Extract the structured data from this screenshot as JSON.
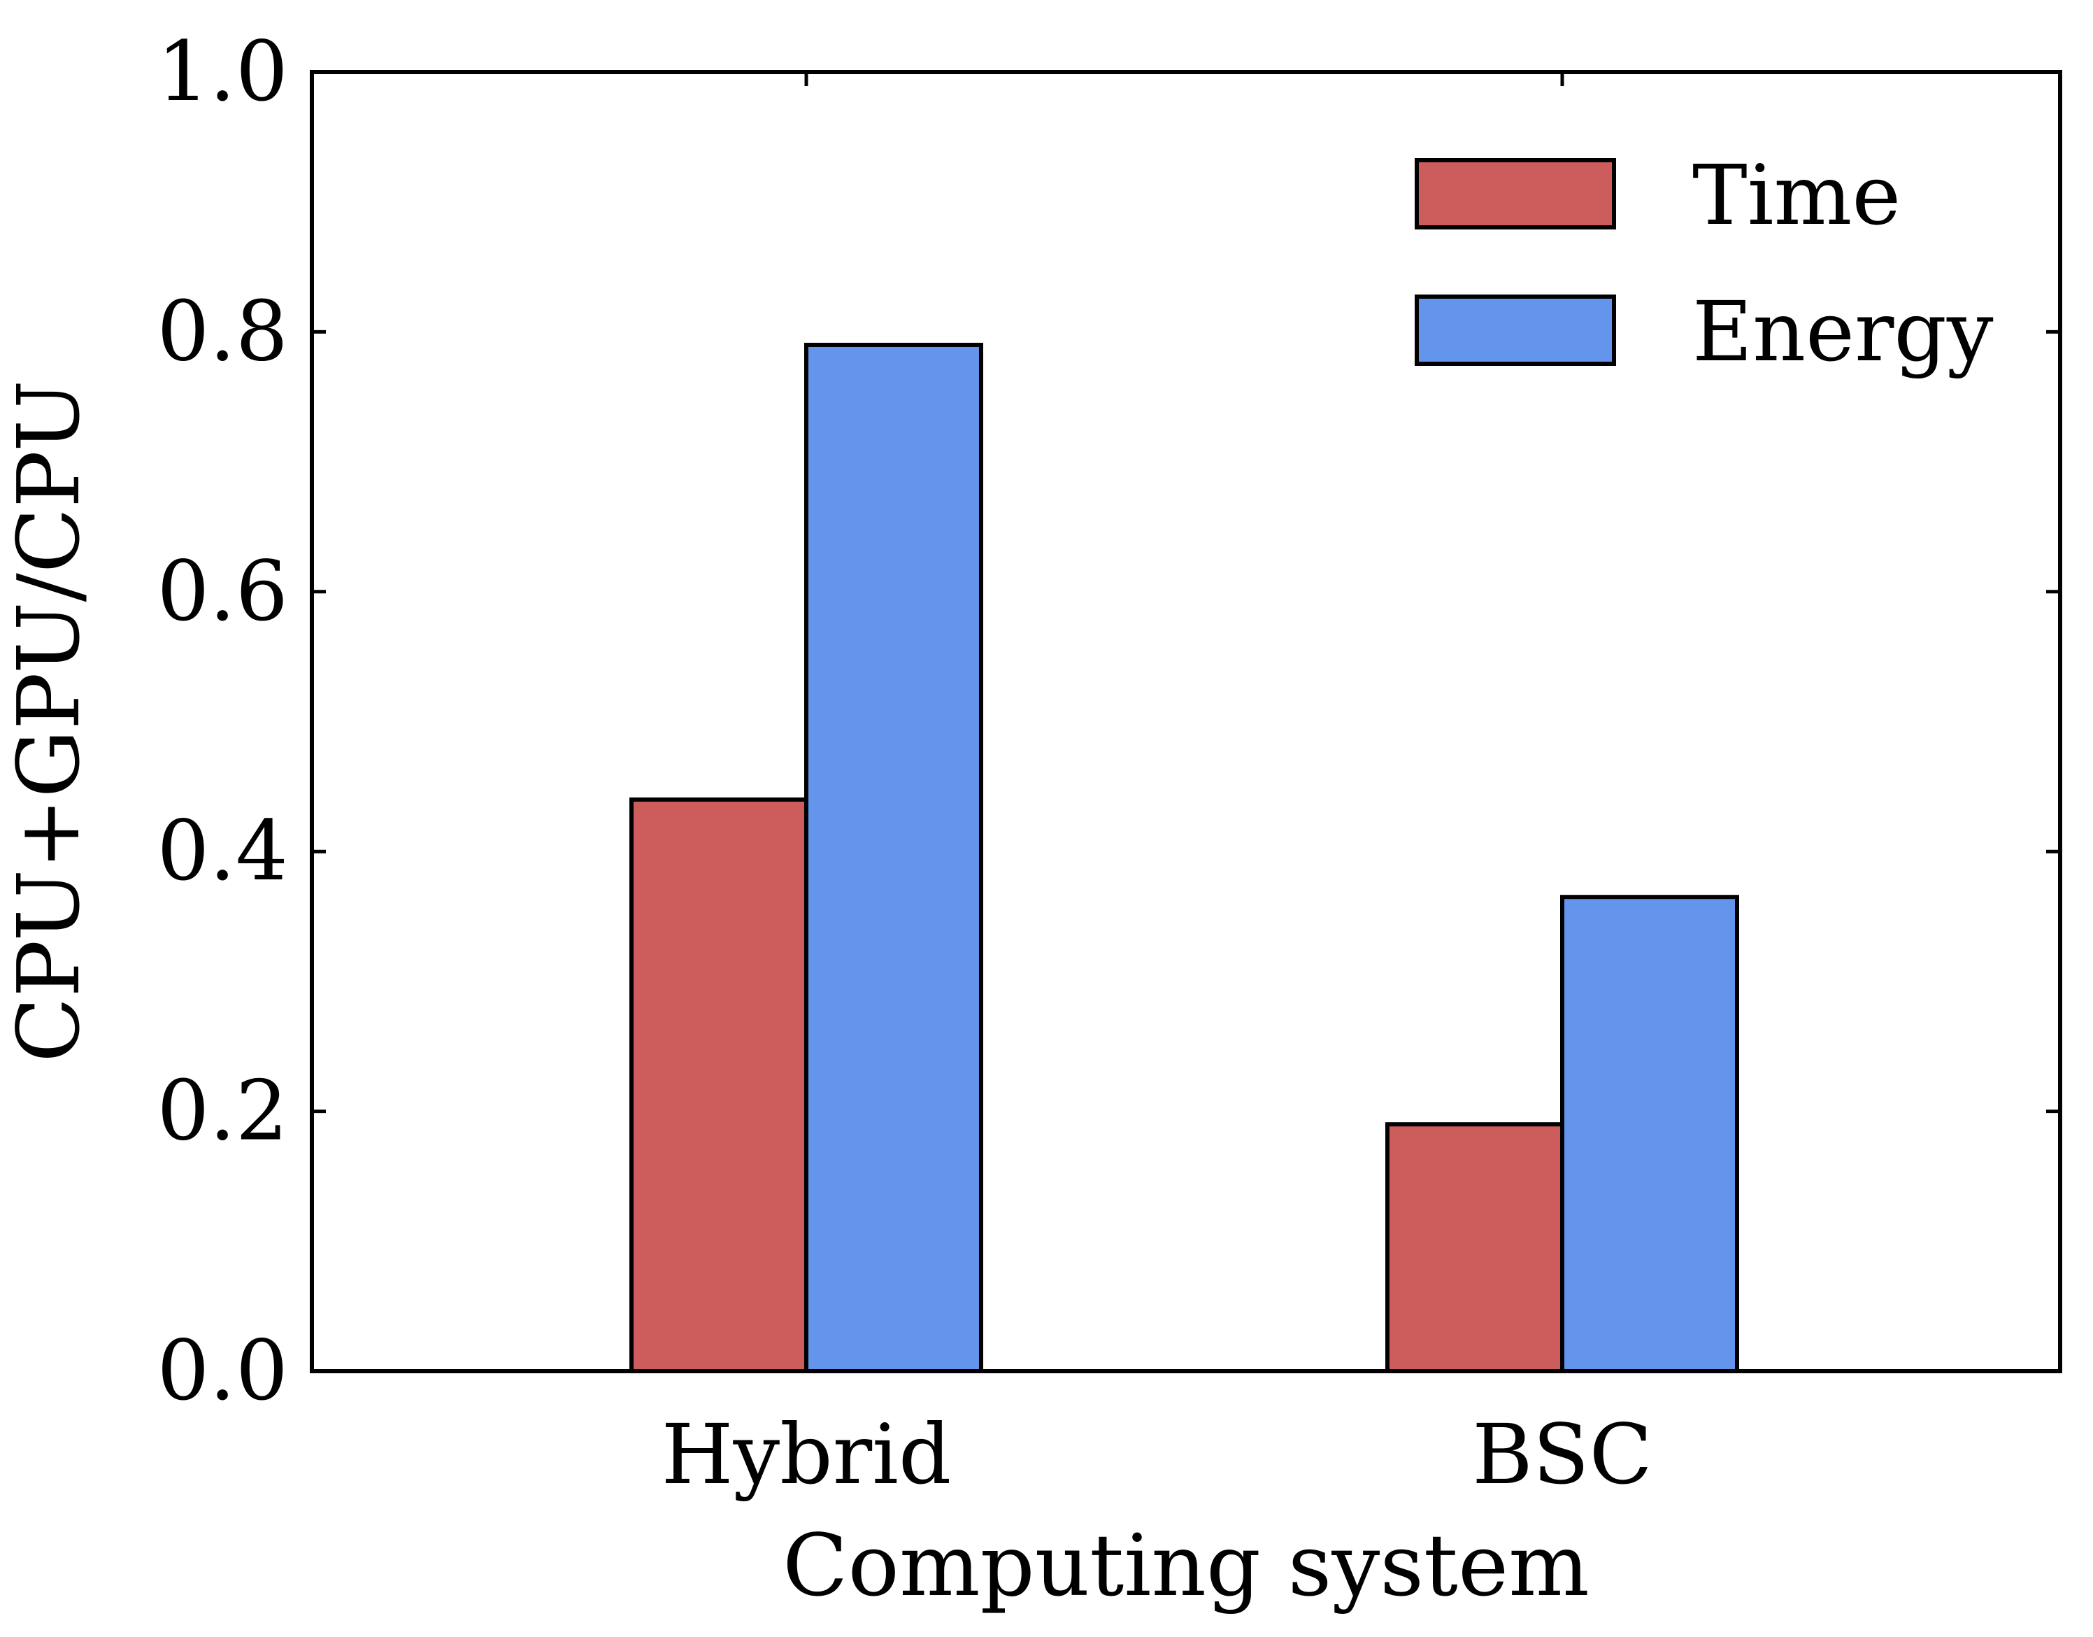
{
  "chart_data": {
    "type": "bar",
    "categories": [
      "Hybrid",
      "BSC"
    ],
    "series": [
      {
        "name": "Time",
        "values": [
          0.44,
          0.19
        ],
        "color": "#cd5c5c"
      },
      {
        "name": "Energy",
        "values": [
          0.79,
          0.365
        ],
        "color": "#6495ed"
      }
    ],
    "xlabel": "Computing system",
    "ylabel": "CPU+GPU/CPU",
    "ylim": [
      0.0,
      1.0
    ],
    "yticks": [
      "0.0",
      "0.2",
      "0.4",
      "0.6",
      "0.8",
      "1.0"
    ],
    "ytick_values": [
      0.0,
      0.2,
      0.4,
      0.6,
      0.8,
      1.0
    ],
    "grid": false,
    "legend_position": "top-right"
  }
}
